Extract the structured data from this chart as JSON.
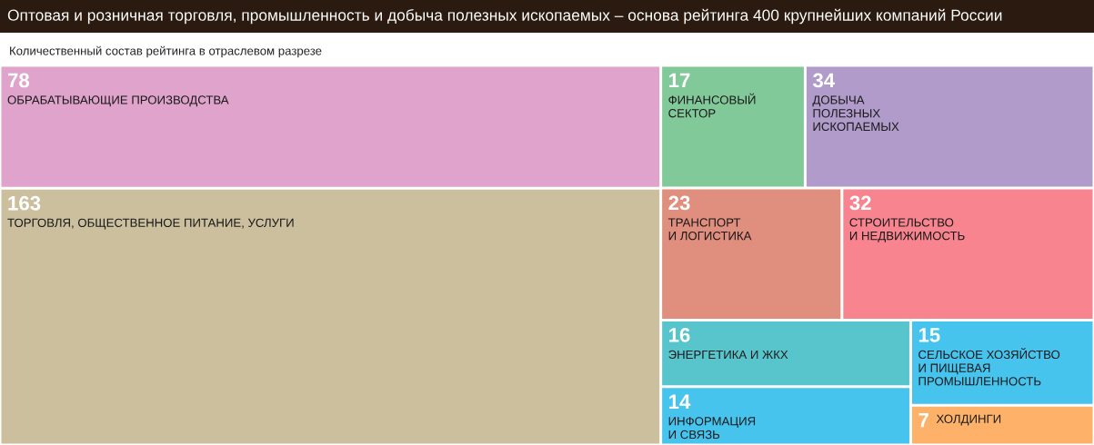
{
  "chart_data": {
    "type": "other",
    "title": "Оптовая и розничная торговля, промышленность и добыча полезных ископаемых – основа рейтинга 400 крупнейших компаний России",
    "subtitle": "Количественный состав рейтинга в отраслевом разрезе",
    "categories": [
      "ОБРАБАТЫВАЮЩИЕ ПРОИЗВОДСТВА",
      "ТОРГОВЛЯ, ОБЩЕСТВЕННОЕ ПИТАНИЕ, УСЛУГИ",
      "ФИНАНСОВЫЙ\nСЕКТОР",
      "ДОБЫЧА\nПОЛЕЗНЫХ\nИСКОПАЕМЫХ",
      "ТРАНСПОРТ\nИ ЛОГИСТИКА",
      "СТРОИТЕЛЬСТВО\nИ НЕДВИЖИМОСТЬ",
      "ЭНЕРГЕТИКА И ЖКХ",
      "ИНФОРМАЦИЯ\nИ СВЯЗЬ",
      "СЕЛЬСКОЕ ХОЗЯЙСТВО\nИ ПИЩЕВАЯ\nПРОМЫШЛЕННОСТЬ",
      "ХОЛДИНГИ"
    ],
    "values": [
      78,
      163,
      17,
      34,
      23,
      32,
      16,
      14,
      15,
      7
    ],
    "colors": [
      "#dfa3cc",
      "#cbbf9e",
      "#82c99a",
      "#b09bcb",
      "#e08e7e",
      "#f7848f",
      "#58c5cd",
      "#46c4ee",
      "#46c4ee",
      "#fdb169"
    ],
    "data_labels": true
  }
}
